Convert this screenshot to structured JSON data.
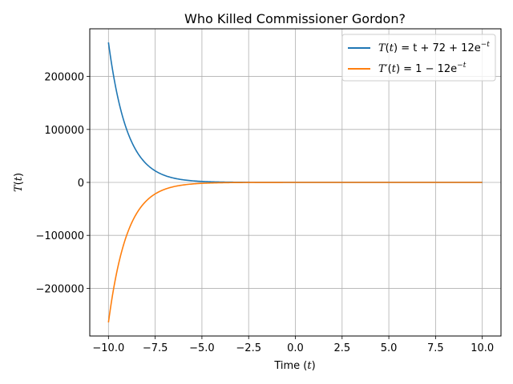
{
  "chart_data": {
    "type": "line",
    "title": "Who Killed Commissioner Gordon?",
    "xlabel": {
      "text": "Time (",
      "var": "t",
      "suffix": ")"
    },
    "ylabel": {
      "var": "T",
      "open": "(",
      "arg": "t",
      "close": ")"
    },
    "xlim": [
      -11.0,
      11.0
    ],
    "ylim": [
      -290000,
      290000
    ],
    "grid": true,
    "legend_position": "upper-right",
    "x_ticks": [
      -10.0,
      -7.5,
      -5.0,
      -2.5,
      0.0,
      2.5,
      5.0,
      7.5,
      10.0
    ],
    "x_tick_labels": [
      "−10.0",
      "−7.5",
      "−5.0",
      "−2.5",
      "0.0",
      "2.5",
      "5.0",
      "7.5",
      "10.0"
    ],
    "y_ticks": [
      -200000,
      -100000,
      0,
      100000,
      200000
    ],
    "y_tick_labels": [
      "−200000",
      "−100000",
      "0",
      "100000",
      "200000"
    ],
    "x_range": [
      -10,
      10
    ],
    "series": [
      {
        "name": "T(t) = t + 72 + 12e^(−t)",
        "legend": {
          "lhs": "T",
          "lp": "(",
          "arg": "t",
          "rp": ")",
          "rhs": " = t + 72 + 12e",
          "exp": "−t"
        },
        "color": "#1f77b4",
        "x": [
          -10,
          -9.5,
          -9,
          -8.5,
          -8,
          -7.5,
          -7,
          -6.5,
          -6,
          -5.5,
          -5,
          -4.5,
          -4,
          -3.5,
          -3,
          -2.5,
          -2,
          -1.5,
          -1,
          -0.5,
          0,
          2.5,
          5,
          7.5,
          10
        ],
        "values": [
          264381,
          160380,
          97303,
          59043,
          35833,
          21752,
          13224,
          8046,
          4907,
          3005,
          1848,
          1144,
          723,
          465,
          310,
          216,
          159,
          124,
          104,
          91,
          84,
          75,
          77,
          80,
          82
        ]
      },
      {
        "name": "T′(t) = 1 − 12e^(−t)",
        "legend": {
          "lhs": "T′",
          "lp": "(",
          "arg": "t",
          "rp": ")",
          "rhs": " = 1 − 12e",
          "exp": "−t"
        },
        "color": "#ff7f0e",
        "x": [
          -10,
          -9.5,
          -9,
          -8.5,
          -8,
          -7.5,
          -7,
          -6.5,
          -6,
          -5.5,
          -5,
          -4.5,
          -4,
          -3.5,
          -3,
          -2.5,
          -2,
          -1.5,
          -1,
          -0.5,
          0,
          2.5,
          5,
          7.5,
          10
        ],
        "values": [
          -264318,
          -160316,
          -97236,
          -58998,
          -35771,
          -21696,
          -13158,
          -7979,
          -4840,
          -2936,
          -1780,
          -1079,
          -654,
          -396,
          -240,
          -145,
          -88,
          -53,
          -32,
          -19,
          -11,
          0,
          1,
          1,
          1
        ]
      }
    ]
  }
}
